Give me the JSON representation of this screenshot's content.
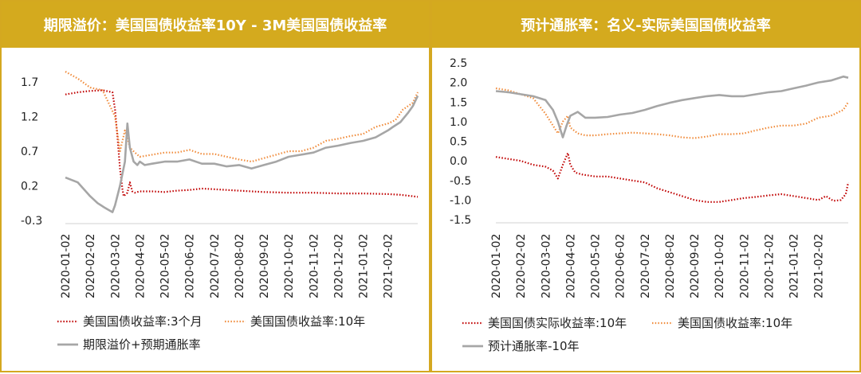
{
  "colors": {
    "header_bg": "#D4AA1E",
    "border": "#D4A820",
    "red_series": "#C00000",
    "orange_series": "#F08C3C",
    "gray_series": "#A6A6A6"
  },
  "panels": [
    {
      "title": "期限溢价：美国国债收益率10Y - 3M美国国债收益率",
      "legend": [
        "美国国债收益率:3个月",
        "美国国债收益率:10年",
        "期限溢价+预期通胀率"
      ]
    },
    {
      "title": "预计通胀率：名义-实际美国国债收益率",
      "legend": [
        "美国国债实际收益率:10年",
        "美国国债收益率:10年",
        "预计通胀率-10年"
      ]
    }
  ],
  "chart_data": [
    {
      "type": "line",
      "x_ticks": [
        "2020-01-02",
        "2020-02-02",
        "2020-03-02",
        "2020-04-02",
        "2020-05-02",
        "2020-06-02",
        "2020-07-02",
        "2020-08-02",
        "2020-09-02",
        "2020-10-02",
        "2020-11-02",
        "2020-12-02",
        "2021-01-02",
        "2021-02-02"
      ],
      "y_ticks": [
        "1.7",
        "1.2",
        "0.7",
        "0.2",
        "-0.3"
      ],
      "ylim": [
        -0.3,
        1.7
      ],
      "x_months": [
        0,
        14.2
      ],
      "grid": false,
      "legend_position": "bottom",
      "series": [
        {
          "name": "美国国债收益率:3个月",
          "style": "dotted",
          "color": "#C00000",
          "x": [
            0,
            0.5,
            1,
            1.5,
            1.9,
            2.0,
            2.1,
            2.2,
            2.3,
            2.35,
            2.5,
            2.6,
            2.7,
            2.8,
            3.0,
            3.5,
            4,
            4.5,
            5,
            5.5,
            6,
            6.5,
            7,
            7.5,
            8,
            9,
            10,
            11,
            12,
            13,
            13.5,
            14.0,
            14.2
          ],
          "y": [
            1.52,
            1.55,
            1.57,
            1.58,
            1.55,
            1.3,
            0.9,
            0.45,
            0.15,
            0.05,
            0.1,
            0.25,
            0.12,
            0.1,
            0.12,
            0.12,
            0.11,
            0.13,
            0.14,
            0.16,
            0.15,
            0.14,
            0.13,
            0.12,
            0.11,
            0.1,
            0.1,
            0.09,
            0.09,
            0.08,
            0.07,
            0.05,
            0.04
          ]
        },
        {
          "name": "美国国债收益率:10年",
          "style": "dotted",
          "color": "#F08C3C",
          "x": [
            0,
            0.5,
            1,
            1.5,
            2.0,
            2.1,
            2.2,
            2.3,
            2.4,
            2.5,
            2.6,
            2.8,
            3.0,
            3.5,
            4,
            4.5,
            5,
            5.5,
            6,
            6.5,
            7,
            7.5,
            8,
            8.5,
            9,
            9.5,
            10,
            10.5,
            11,
            11.5,
            12,
            12.5,
            13,
            13.3,
            13.6,
            14.0,
            14.2
          ],
          "y": [
            1.85,
            1.75,
            1.62,
            1.58,
            1.2,
            0.95,
            0.7,
            0.85,
            1.0,
            0.9,
            0.75,
            0.68,
            0.62,
            0.65,
            0.68,
            0.68,
            0.72,
            0.66,
            0.66,
            0.62,
            0.58,
            0.55,
            0.6,
            0.65,
            0.7,
            0.7,
            0.75,
            0.85,
            0.88,
            0.92,
            0.95,
            1.05,
            1.1,
            1.15,
            1.3,
            1.4,
            1.55
          ]
        },
        {
          "name": "期限溢价+预期通胀率",
          "style": "solid",
          "color": "#A6A6A6",
          "x": [
            0,
            0.5,
            1,
            1.3,
            1.6,
            1.9,
            2.0,
            2.2,
            2.4,
            2.5,
            2.6,
            2.75,
            2.9,
            3.0,
            3.2,
            3.5,
            4,
            4.5,
            5,
            5.5,
            6,
            6.5,
            7,
            7.5,
            8,
            8.5,
            9,
            9.5,
            10,
            10.5,
            11,
            11.5,
            12,
            12.5,
            13,
            13.2,
            13.5,
            13.8,
            14.0,
            14.2
          ],
          "y": [
            0.32,
            0.25,
            0.05,
            -0.05,
            -0.12,
            -0.18,
            -0.08,
            0.2,
            0.55,
            1.1,
            0.75,
            0.55,
            0.5,
            0.55,
            0.5,
            0.52,
            0.55,
            0.55,
            0.58,
            0.52,
            0.52,
            0.48,
            0.5,
            0.45,
            0.5,
            0.55,
            0.62,
            0.65,
            0.68,
            0.75,
            0.78,
            0.82,
            0.85,
            0.9,
            1.0,
            1.05,
            1.12,
            1.25,
            1.35,
            1.5
          ]
        }
      ]
    },
    {
      "type": "line",
      "x_ticks": [
        "2020-01-02",
        "2020-02-02",
        "2020-03-02",
        "2020-04-02",
        "2020-05-02",
        "2020-06-02",
        "2020-07-02",
        "2020-08-02",
        "2020-09-02",
        "2020-10-02",
        "2020-11-02",
        "2020-12-02",
        "2021-01-02",
        "2021-02-02"
      ],
      "y_ticks": [
        "2.5",
        "2.0",
        "1.5",
        "1.0",
        "0.5",
        "0.0",
        "-0.5",
        "-1.0",
        "-1.5"
      ],
      "ylim": [
        -1.5,
        2.5
      ],
      "x_months": [
        0,
        14.2
      ],
      "grid": false,
      "legend_position": "bottom",
      "series": [
        {
          "name": "美国国债实际收益率:10年",
          "style": "dotted",
          "color": "#C00000",
          "x": [
            0,
            0.5,
            1,
            1.5,
            2.0,
            2.3,
            2.5,
            2.7,
            2.9,
            3.0,
            3.2,
            3.5,
            4,
            4.5,
            5,
            5.5,
            6,
            6.5,
            7,
            7.5,
            8,
            8.5,
            9,
            9.5,
            10,
            10.5,
            11,
            11.5,
            12,
            12.5,
            13,
            13.3,
            13.6,
            13.9,
            14.1,
            14.2
          ],
          "y": [
            0.1,
            0.05,
            0.0,
            -0.1,
            -0.15,
            -0.25,
            -0.45,
            -0.1,
            0.2,
            -0.1,
            -0.3,
            -0.35,
            -0.4,
            -0.4,
            -0.45,
            -0.5,
            -0.55,
            -0.7,
            -0.8,
            -0.9,
            -1.0,
            -1.05,
            -1.05,
            -1.0,
            -0.95,
            -0.92,
            -0.88,
            -0.85,
            -0.9,
            -0.95,
            -1.0,
            -0.9,
            -1.02,
            -1.0,
            -0.85,
            -0.55
          ]
        },
        {
          "name": "美国国债收益率:10年",
          "style": "dotted",
          "color": "#F08C3C",
          "x": [
            0,
            0.5,
            1,
            1.5,
            2.0,
            2.3,
            2.5,
            2.7,
            2.9,
            3.0,
            3.3,
            3.6,
            4,
            4.5,
            5,
            5.5,
            6,
            6.5,
            7,
            7.5,
            8,
            8.5,
            9,
            9.5,
            10,
            10.5,
            11,
            11.5,
            12,
            12.5,
            13,
            13.5,
            14.0,
            14.2
          ],
          "y": [
            1.85,
            1.8,
            1.7,
            1.6,
            1.2,
            0.9,
            0.7,
            1.0,
            1.15,
            0.85,
            0.7,
            0.65,
            0.65,
            0.68,
            0.7,
            0.72,
            0.7,
            0.68,
            0.65,
            0.6,
            0.58,
            0.62,
            0.68,
            0.68,
            0.7,
            0.78,
            0.85,
            0.9,
            0.9,
            0.95,
            1.1,
            1.15,
            1.3,
            1.5
          ]
        },
        {
          "name": "预计通胀率-10年",
          "style": "solid",
          "color": "#A6A6A6",
          "x": [
            0,
            0.5,
            1,
            1.5,
            2.0,
            2.3,
            2.5,
            2.7,
            2.85,
            3.0,
            3.3,
            3.6,
            4,
            4.5,
            5,
            5.5,
            6,
            6.5,
            7,
            7.5,
            8,
            8.5,
            9,
            9.5,
            10,
            10.5,
            11,
            11.5,
            12,
            12.5,
            13,
            13.5,
            14.0,
            14.2
          ],
          "y": [
            1.78,
            1.75,
            1.7,
            1.65,
            1.55,
            1.3,
            1.0,
            0.6,
            0.9,
            1.15,
            1.25,
            1.1,
            1.1,
            1.12,
            1.18,
            1.22,
            1.3,
            1.4,
            1.48,
            1.55,
            1.6,
            1.65,
            1.68,
            1.65,
            1.65,
            1.7,
            1.75,
            1.78,
            1.85,
            1.92,
            2.0,
            2.05,
            2.15,
            2.12
          ]
        }
      ]
    }
  ]
}
